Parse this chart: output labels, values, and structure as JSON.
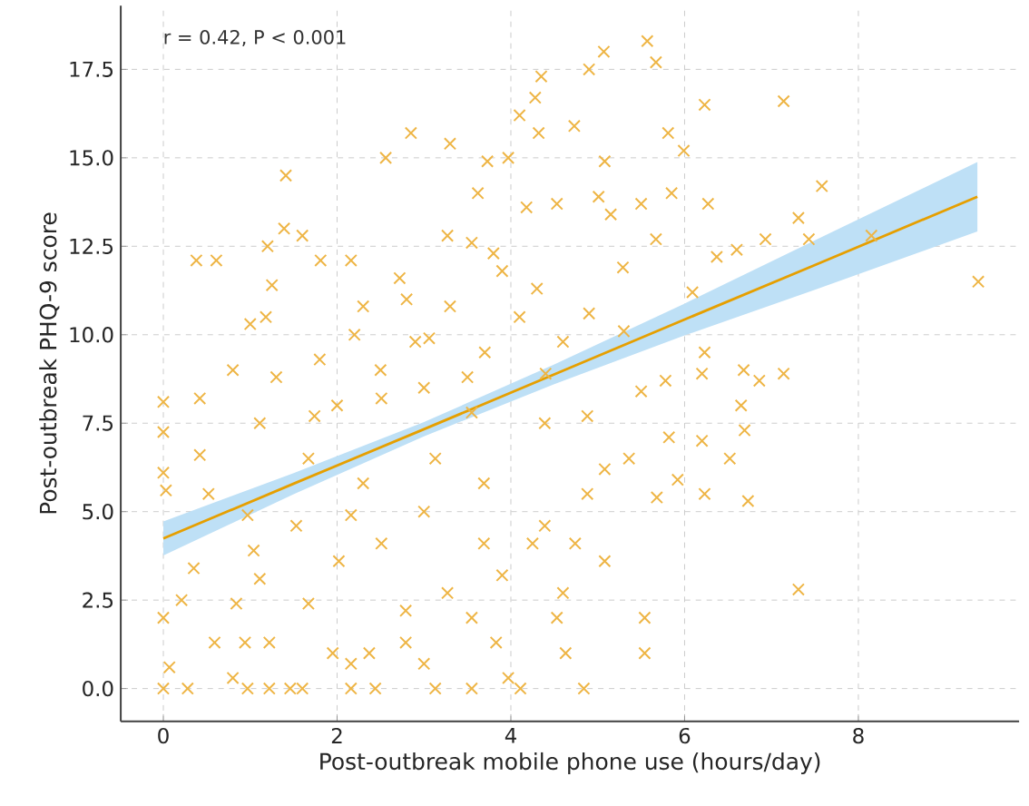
{
  "chart_data": {
    "type": "scatter",
    "xlabel": "Post-outbreak mobile phone use (hours/day)",
    "ylabel": "Post-outbreak PHQ-9 score",
    "annotations": [
      "r = 0.42, P < 0.001"
    ],
    "xlim": [
      -0.49,
      9.85
    ],
    "ylim": [
      -0.93,
      19.3
    ],
    "xticks": [
      0,
      2,
      4,
      6,
      8
    ],
    "yticks": [
      {
        "value": 0,
        "label": "0.0"
      },
      2.5,
      {
        "value": 5,
        "label": "5.0"
      },
      7.5,
      {
        "value": 10,
        "label": "10.0"
      },
      12.5,
      {
        "value": 15,
        "label": "15.0"
      },
      17.5
    ],
    "grid": true,
    "series": [
      {
        "type": "scatter",
        "marker": "cross",
        "color": "#eeb545",
        "x": [
          0.38,
          0.61,
          1.41,
          1.39,
          1.2,
          1.6,
          2.85,
          3.3,
          2.56,
          3.62,
          3.73,
          3.97,
          4.1,
          4.28,
          4.35,
          4.32,
          4.73,
          4.9,
          5.07,
          5.57,
          5.67,
          5.81,
          5.99,
          6.23,
          5.85,
          6.27,
          7.14,
          7.58,
          7.31,
          7.43,
          8.15,
          9.38,
          6.93,
          6.6,
          6.37,
          6.09,
          5.15,
          5.5,
          4.53,
          5.01,
          5.08,
          4.18,
          3.27,
          3.55,
          2.72,
          2.16,
          1.81,
          1.25,
          1.18,
          2.3,
          3.06,
          5.29,
          5.67,
          6.23,
          6.68,
          6.86,
          7.14,
          6.2,
          0,
          0,
          0,
          0.03,
          0,
          0,
          0.07,
          0.28,
          0.42,
          0.42,
          0.52,
          0.35,
          0.21,
          0.59,
          0.8,
          0.97,
          0.94,
          0.84,
          1.04,
          0.97,
          1.22,
          1.22,
          1.46,
          1.6,
          1.67,
          1.95,
          2.16,
          2.16,
          2.44,
          2.37,
          2.79,
          2.79,
          3.0,
          3.13,
          3.55,
          3.83,
          3.97,
          4.11,
          4.84,
          4.53,
          4.63,
          4.6,
          4.74,
          5.08,
          5.54,
          5.54,
          7.31,
          5.68,
          5.92,
          5.82,
          6.23,
          6.2,
          6.73,
          6.52,
          6.69,
          6.65,
          5.36,
          5.08,
          4.88,
          4.39,
          4.25,
          3.9,
          3.55,
          3.27,
          2.51,
          2.02,
          1.53,
          1.11,
          1.67,
          2.3,
          3.13,
          3.69,
          3.69,
          3.0,
          2.16,
          1.74,
          1.11,
          2.51,
          3.55,
          4.39,
          4.88,
          5.5,
          5.78,
          2.5,
          3.0,
          3.3,
          3.7,
          2.2,
          2.8,
          4.1,
          4.6,
          3.9,
          1.8,
          1.3,
          0.8,
          4.9,
          5.3,
          1.0,
          2.0,
          3.5,
          4.4,
          2.9,
          3.8,
          4.3
        ],
        "values": [
          12.1,
          12.1,
          14.5,
          13.0,
          12.5,
          12.8,
          15.7,
          15.4,
          15.0,
          14.0,
          14.9,
          15.0,
          16.2,
          16.7,
          17.3,
          15.7,
          15.9,
          17.5,
          18.0,
          18.3,
          17.7,
          15.7,
          15.2,
          16.5,
          14.0,
          13.7,
          16.6,
          14.2,
          13.3,
          12.7,
          12.8,
          11.5,
          12.7,
          12.4,
          12.2,
          11.2,
          13.4,
          13.7,
          13.7,
          13.9,
          14.9,
          13.6,
          12.8,
          12.6,
          11.6,
          12.1,
          12.1,
          11.4,
          10.5,
          10.8,
          9.9,
          11.9,
          12.7,
          9.5,
          9.0,
          8.7,
          8.9,
          8.9,
          8.1,
          7.25,
          6.1,
          5.6,
          2.0,
          0,
          0.6,
          0,
          8.2,
          6.6,
          5.5,
          3.4,
          2.5,
          1.3,
          0.3,
          0,
          1.3,
          2.4,
          3.9,
          4.9,
          1.3,
          0,
          0,
          0,
          2.4,
          1.0,
          0.7,
          0,
          0,
          1.0,
          1.3,
          2.2,
          0.7,
          0,
          0,
          1.3,
          0.3,
          0,
          0,
          2.0,
          1.0,
          2.7,
          4.1,
          3.6,
          2.0,
          1.0,
          2.8,
          5.4,
          5.9,
          7.1,
          5.5,
          7.0,
          5.3,
          6.5,
          7.3,
          8.0,
          6.5,
          6.2,
          5.5,
          4.6,
          4.1,
          3.2,
          2.0,
          2.7,
          4.1,
          3.6,
          4.6,
          3.1,
          6.5,
          5.8,
          6.5,
          5.8,
          4.1,
          5.0,
          4.9,
          7.7,
          7.5,
          8.2,
          7.8,
          7.5,
          7.7,
          8.4,
          8.7,
          9.0,
          8.5,
          10.8,
          9.5,
          10.0,
          11.0,
          10.5,
          9.8,
          11.8,
          9.3,
          8.8,
          9.0,
          10.6,
          10.1,
          10.3,
          8.0,
          8.8,
          8.9,
          9.8,
          12.3,
          11.3
        ]
      },
      {
        "type": "line",
        "color": "#e69f00",
        "line_style": "solid",
        "marker": "none",
        "x": [
          0,
          1.5,
          3,
          4.5,
          6,
          7.5,
          9.37
        ],
        "values": [
          4.24,
          5.79,
          7.33,
          8.88,
          10.43,
          11.97,
          13.9
        ],
        "lower": [
          3.76,
          5.49,
          7.13,
          8.6,
          9.98,
          11.27,
          12.92
        ],
        "upper": [
          4.72,
          6.09,
          7.53,
          9.16,
          10.88,
          12.67,
          14.88
        ]
      }
    ]
  }
}
